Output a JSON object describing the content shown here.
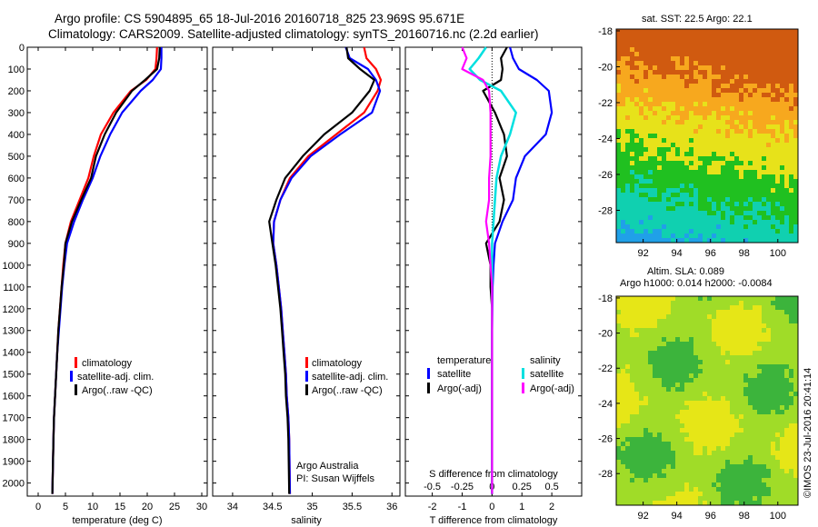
{
  "title": {
    "line1": "Argo profile: CS 5904895_65 18-Jul-2016 20160718_825 23.969S 95.671E",
    "line2": "Climatology: CARS2009. Satellite-adjusted climatology: synTS_20160716.nc (2.2d earlier)"
  },
  "colors": {
    "climatology": "#ff0000",
    "satellite": "#0000ff",
    "argo": "#000000",
    "sal_satellite": "#00e0e0",
    "sal_argo": "#ff00ff"
  },
  "chart_data": [
    {
      "type": "line",
      "xlabel": "temperature (deg C)",
      "xlim": [
        -2,
        31
      ],
      "xticks": [
        0,
        5,
        10,
        15,
        20,
        25,
        30
      ],
      "ylim": [
        0,
        2060
      ],
      "yticks": [
        0,
        100,
        200,
        300,
        400,
        500,
        600,
        700,
        800,
        900,
        1000,
        1100,
        1200,
        1300,
        1400,
        1500,
        1600,
        1700,
        1800,
        1900,
        2000
      ],
      "reverse_y": true,
      "series": [
        {
          "name": "climatology",
          "color": "#ff0000",
          "x": [
            21.8,
            21.7,
            21.5,
            19.8,
            17.0,
            13.8,
            11.5,
            10.2,
            9.2,
            7.6,
            6.0,
            5.0,
            4.6,
            4.3,
            4.0,
            3.7,
            3.5,
            3.3,
            3.1,
            2.9,
            2.8,
            2.6
          ],
          "y": [
            0,
            50,
            100,
            150,
            200,
            300,
            400,
            500,
            600,
            700,
            800,
            900,
            1000,
            1100,
            1200,
            1300,
            1400,
            1500,
            1600,
            1700,
            1800,
            2050
          ]
        },
        {
          "name": "satellite-adj. clim.",
          "color": "#0000ff",
          "x": [
            22.6,
            22.6,
            22.5,
            21.0,
            18.8,
            15.4,
            13.2,
            11.4,
            10.0,
            8.2,
            6.6,
            5.3,
            4.8,
            4.4,
            4.1,
            3.8,
            3.5,
            3.3,
            3.1,
            2.9,
            2.8,
            2.6
          ],
          "y": [
            0,
            50,
            100,
            150,
            200,
            300,
            400,
            500,
            600,
            700,
            800,
            900,
            1000,
            1100,
            1200,
            1300,
            1400,
            1500,
            1600,
            1700,
            1800,
            2050
          ]
        },
        {
          "name": "Argo(..raw -QC)",
          "color": "#000000",
          "x": [
            22.3,
            22.2,
            21.8,
            19.6,
            17.2,
            14.3,
            12.2,
            10.6,
            9.7,
            7.9,
            6.2,
            5.0,
            4.7,
            4.3,
            4.0,
            3.7,
            3.5,
            3.3,
            3.1,
            2.9,
            2.8,
            2.6
          ],
          "y": [
            0,
            50,
            100,
            150,
            200,
            300,
            400,
            500,
            600,
            700,
            800,
            900,
            1000,
            1100,
            1200,
            1300,
            1400,
            1500,
            1600,
            1700,
            1800,
            2050
          ]
        }
      ]
    },
    {
      "type": "line",
      "xlabel": "salinity",
      "xlim": [
        33.75,
        36.1
      ],
      "xticks": [
        34,
        34.5,
        35,
        35.5,
        36
      ],
      "ylim": [
        0,
        2060
      ],
      "reverse_y": true,
      "series": [
        {
          "name": "climatology",
          "color": "#ff0000",
          "x": [
            35.65,
            35.68,
            35.8,
            35.86,
            35.82,
            35.65,
            35.3,
            34.95,
            34.72,
            34.6,
            34.52,
            34.51,
            34.55,
            34.58,
            34.61,
            34.63,
            34.65,
            34.67,
            34.68,
            34.7,
            34.71,
            34.72
          ],
          "y": [
            0,
            50,
            100,
            150,
            200,
            300,
            400,
            500,
            600,
            700,
            800,
            900,
            1000,
            1100,
            1200,
            1300,
            1400,
            1500,
            1600,
            1700,
            1800,
            2050
          ]
        },
        {
          "name": "satellite-adj. clim.",
          "color": "#0000ff",
          "x": [
            35.42,
            35.47,
            35.7,
            35.8,
            35.85,
            35.75,
            35.35,
            34.98,
            34.74,
            34.6,
            34.52,
            34.51,
            34.55,
            34.58,
            34.61,
            34.63,
            34.65,
            34.67,
            34.68,
            34.7,
            34.71,
            34.72
          ],
          "y": [
            0,
            50,
            100,
            150,
            200,
            300,
            400,
            500,
            600,
            700,
            800,
            900,
            1000,
            1100,
            1200,
            1300,
            1400,
            1500,
            1600,
            1700,
            1800,
            2050
          ]
        },
        {
          "name": "Argo(..raw -QC)",
          "color": "#000000",
          "x": [
            35.43,
            35.45,
            35.6,
            35.78,
            35.72,
            35.5,
            35.15,
            34.88,
            34.66,
            34.55,
            34.46,
            34.5,
            34.54,
            34.57,
            34.6,
            34.62,
            34.64,
            34.66,
            34.67,
            34.69,
            34.7,
            34.71
          ],
          "y": [
            0,
            50,
            100,
            150,
            200,
            300,
            400,
            500,
            600,
            700,
            800,
            900,
            1000,
            1100,
            1200,
            1300,
            1400,
            1500,
            1600,
            1700,
            1800,
            2050
          ]
        }
      ],
      "annotations": [
        "Argo Australia",
        "PI: Susan Wijffels"
      ]
    },
    {
      "type": "line",
      "xlabel": "T difference from climatology",
      "xlabel_top": "S difference from climatology",
      "xlim": [
        -2.9,
        3.0
      ],
      "xticks": [
        -2,
        -1,
        0,
        1,
        2
      ],
      "xticks_top": [
        "-0.5",
        "-0.25",
        "0",
        "0.25",
        "0.5"
      ],
      "ylim": [
        0,
        2060
      ],
      "reverse_y": true,
      "legend_headers": [
        "temperature",
        "salinity"
      ],
      "series": [
        {
          "name": "satellite",
          "group": "temperature",
          "color": "#0000ff",
          "x": [
            0.6,
            0.7,
            0.9,
            1.5,
            1.9,
            2.0,
            1.8,
            1.1,
            0.8,
            0.7,
            0.35,
            0.1,
            0.05,
            0.02,
            0.01,
            0.0,
            0.0,
            0.0,
            0.0,
            0.0,
            0.0
          ],
          "y": [
            0,
            50,
            100,
            150,
            200,
            300,
            400,
            500,
            600,
            700,
            800,
            900,
            1000,
            1100,
            1200,
            1300,
            1400,
            1500,
            1600,
            1700,
            2050
          ]
        },
        {
          "name": "Argo(-adj)",
          "group": "temperature",
          "color": "#000000",
          "x": [
            0.5,
            0.3,
            0.35,
            0.3,
            -0.3,
            0.1,
            0.4,
            0.5,
            0.25,
            0.4,
            0.25,
            -0.2,
            -0.05,
            -0.05,
            0.0,
            0.0,
            0.0,
            0.0,
            0.0,
            0.0,
            0.0
          ],
          "y": [
            0,
            50,
            100,
            150,
            200,
            300,
            400,
            500,
            600,
            700,
            800,
            900,
            1000,
            1100,
            1200,
            1300,
            1400,
            1500,
            1600,
            1700,
            2050
          ]
        },
        {
          "name": "satellite",
          "group": "salinity",
          "color": "#00e0e0",
          "x": [
            -0.2,
            -0.45,
            -0.75,
            -0.4,
            0.3,
            0.8,
            0.6,
            0.3,
            0.15,
            0.1,
            0.05,
            0.0,
            0.0,
            0.0,
            0.0,
            0.0,
            0.0,
            0.0,
            0.0,
            0.0,
            0.0
          ],
          "y": [
            0,
            50,
            100,
            150,
            200,
            300,
            400,
            500,
            600,
            700,
            800,
            900,
            1000,
            1100,
            1200,
            1300,
            1400,
            1500,
            1600,
            1700,
            2050
          ]
        },
        {
          "name": "Argo(-adj)",
          "group": "salinity",
          "color": "#ff00ff",
          "x": [
            -1.0,
            -0.85,
            -1.0,
            -0.3,
            -0.1,
            -0.05,
            -0.05,
            -0.05,
            -0.1,
            -0.1,
            -0.2,
            -0.1,
            -0.05,
            0.0,
            0.0,
            0.0,
            0.0,
            0.0,
            0.0,
            0.0,
            0.0
          ],
          "y": [
            0,
            50,
            100,
            150,
            200,
            300,
            400,
            500,
            600,
            700,
            800,
            900,
            1000,
            1100,
            1200,
            1300,
            1400,
            1500,
            1600,
            1700,
            2050
          ]
        }
      ]
    },
    {
      "type": "heatmap",
      "title": "sat. SST: 22.5  Argo: 22.1",
      "xticks": [
        92,
        94,
        96,
        98,
        100
      ],
      "yticks": [
        -18,
        -20,
        -22,
        -24,
        -26,
        -28
      ],
      "xlim": [
        90.4,
        101.2
      ],
      "ylim": [
        -29.8,
        -17.9
      ],
      "colors_by_band": [
        "#d05a10",
        "#f7a81e",
        "#e7e21a",
        "#20c020",
        "#10d0b0",
        "#20a0e8"
      ]
    },
    {
      "type": "heatmap",
      "title": "Altim. SLA: 0.089",
      "subtitle": "Argo h1000: 0.014  h2000: -0.0084",
      "xticks": [
        92,
        94,
        96,
        98,
        100
      ],
      "yticks": [
        -18,
        -20,
        -22,
        -24,
        -26,
        -28
      ],
      "xlim": [
        90.4,
        101.2
      ],
      "ylim": [
        -29.8,
        -17.9
      ],
      "colors_by_band": [
        "#e6e617",
        "#a0dc28",
        "#3cb43c"
      ]
    }
  ],
  "watermark": "©IMOS 23-Jul-2016 20:41:14",
  "legend": {
    "climatology": "climatology",
    "satellite_clim": "satellite-adj. clim.",
    "argo_raw": "Argo(..raw -QC)",
    "temperature": "temperature",
    "salinity": "salinity",
    "satellite": "satellite",
    "argo_adj": "Argo(-adj)"
  }
}
